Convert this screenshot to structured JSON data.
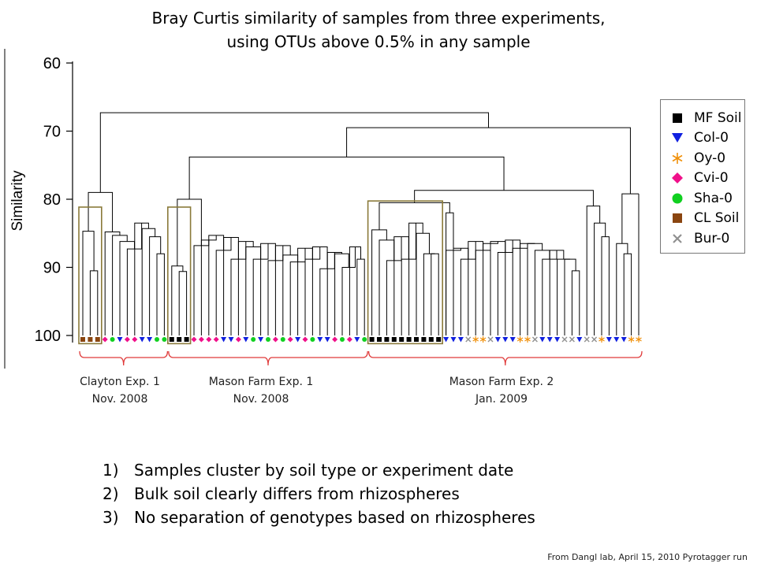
{
  "title": {
    "line1": "Bray Curtis similarity of samples from three experiments,",
    "line2": "using OTUs above 0.5% in any sample"
  },
  "axis": {
    "label": "Similarity",
    "ticks": [
      "60",
      "70",
      "80",
      "90",
      "100"
    ]
  },
  "legend": [
    {
      "label": "MF Soil",
      "shape": "square",
      "color": "#000000"
    },
    {
      "label": "Col-0",
      "shape": "triangle-down",
      "color": "#1020e0"
    },
    {
      "label": "Oy-0",
      "shape": "asterisk",
      "color": "#f0900a"
    },
    {
      "label": "Cvi-0",
      "shape": "diamond",
      "color": "#f0108a"
    },
    {
      "label": "Sha-0",
      "shape": "circle",
      "color": "#10d020"
    },
    {
      "label": "CL Soil",
      "shape": "square",
      "color": "#8a4510"
    },
    {
      "label": "Bur-0",
      "shape": "cross",
      "color": "#909090"
    }
  ],
  "groups": [
    {
      "line1": "Clayton Exp. 1",
      "line2": "Nov. 2008"
    },
    {
      "line1": "Mason Farm Exp. 1",
      "line2": "Nov. 2008"
    },
    {
      "line1": "Mason Farm Exp. 2",
      "line2": "Jan. 2009"
    }
  ],
  "points": [
    {
      "num": "1)",
      "text": "Samples cluster by soil type or experiment date"
    },
    {
      "num": "2)",
      "text": "Bulk soil clearly differs from rhizospheres"
    },
    {
      "num": "3)",
      "text": "No separation of genotypes based on rhizospheres"
    }
  ],
  "footnote": "From  Dangl lab, April 15, 2010  Pyrotagger run",
  "samples": [
    "CL Soil",
    "CL Soil",
    "CL Soil",
    "Cvi-0",
    "Sha-0",
    "Col-0",
    "Cvi-0",
    "Cvi-0",
    "Col-0",
    "Col-0",
    "Sha-0",
    "Sha-0",
    "MF Soil",
    "MF Soil",
    "MF Soil",
    "Cvi-0",
    "Cvi-0",
    "Cvi-0",
    "Cvi-0",
    "Col-0",
    "Col-0",
    "Cvi-0",
    "Col-0",
    "Sha-0",
    "Col-0",
    "Sha-0",
    "Cvi-0",
    "Sha-0",
    "Cvi-0",
    "Col-0",
    "Cvi-0",
    "Sha-0",
    "Col-0",
    "Col-0",
    "Cvi-0",
    "Sha-0",
    "Cvi-0",
    "Col-0",
    "Sha-0",
    "MF Soil",
    "MF Soil",
    "MF Soil",
    "MF Soil",
    "MF Soil",
    "MF Soil",
    "MF Soil",
    "MF Soil",
    "MF Soil",
    "MF Soil",
    "Col-0",
    "Col-0",
    "Col-0",
    "Bur-0",
    "Oy-0",
    "Oy-0",
    "Bur-0",
    "Col-0",
    "Col-0",
    "Col-0",
    "Oy-0",
    "Oy-0",
    "Bur-0",
    "Col-0",
    "Col-0",
    "Col-0",
    "Bur-0",
    "Bur-0",
    "Col-0",
    "Bur-0",
    "Bur-0",
    "Oy-0",
    "Col-0",
    "Col-0",
    "Col-0",
    "Oy-0",
    "Oy-0"
  ]
}
